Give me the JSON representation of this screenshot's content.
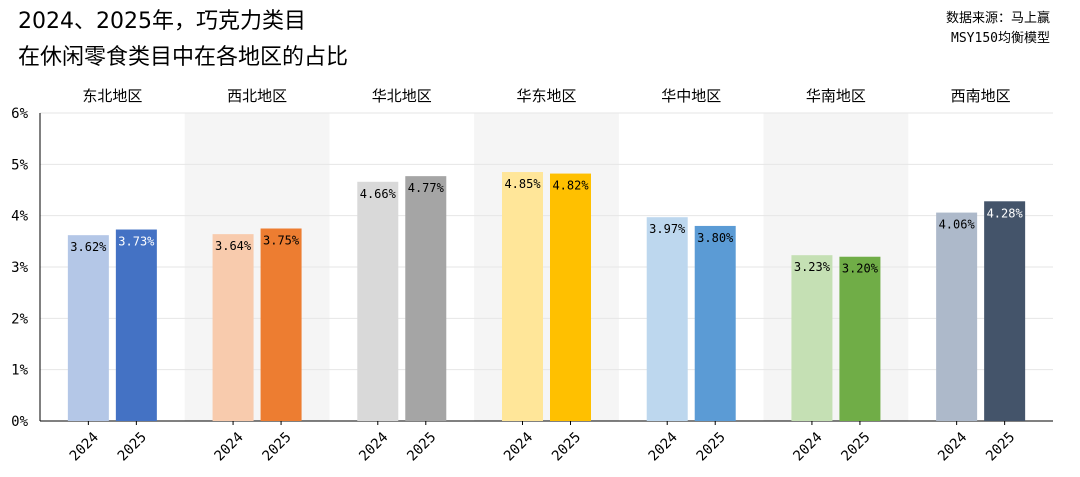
{
  "header": {
    "title_line1": "2024、2025年，巧克力类目",
    "title_line2": "在休闲零食类目中在各地区的占比",
    "source_line1": "数据来源：马上赢",
    "source_line2": "MSY150均衡模型"
  },
  "chart_data": {
    "type": "bar",
    "title": "2024、2025年，巧克力类目在休闲零食类目中在各地区的占比",
    "xlabel": "",
    "ylabel": "",
    "ylim": [
      0,
      6
    ],
    "yticks": [
      "0%",
      "1%",
      "2%",
      "3%",
      "4%",
      "5%",
      "6%"
    ],
    "grid": true,
    "groups": [
      {
        "name": "东北地区",
        "x": [
          "2024",
          "2025"
        ],
        "values": [
          3.62,
          3.73
        ],
        "labels": [
          "3.62%",
          "3.73%"
        ],
        "colors": [
          "#b4c7e7",
          "#4472c4"
        ],
        "shaded": false
      },
      {
        "name": "西北地区",
        "x": [
          "2024",
          "2025"
        ],
        "values": [
          3.64,
          3.75
        ],
        "labels": [
          "3.64%",
          "3.75%"
        ],
        "colors": [
          "#f8cbad",
          "#ed7d31"
        ],
        "shaded": true
      },
      {
        "name": "华北地区",
        "x": [
          "2024",
          "2025"
        ],
        "values": [
          4.66,
          4.77
        ],
        "labels": [
          "4.66%",
          "4.77%"
        ],
        "colors": [
          "#d9d9d9",
          "#a5a5a5"
        ],
        "shaded": false
      },
      {
        "name": "华东地区",
        "x": [
          "2024",
          "2025"
        ],
        "values": [
          4.85,
          4.82
        ],
        "labels": [
          "4.85%",
          "4.82%"
        ],
        "colors": [
          "#ffe699",
          "#ffc000"
        ],
        "shaded": true
      },
      {
        "name": "华中地区",
        "x": [
          "2024",
          "2025"
        ],
        "values": [
          3.97,
          3.8
        ],
        "labels": [
          "3.97%",
          "3.80%"
        ],
        "colors": [
          "#bdd7ee",
          "#5b9bd5"
        ],
        "shaded": false
      },
      {
        "name": "华南地区",
        "x": [
          "2024",
          "2025"
        ],
        "values": [
          3.23,
          3.2
        ],
        "labels": [
          "3.23%",
          "3.20%"
        ],
        "colors": [
          "#c5e0b4",
          "#70ad47"
        ],
        "shaded": true
      },
      {
        "name": "西南地区",
        "x": [
          "2024",
          "2025"
        ],
        "values": [
          4.06,
          4.28
        ],
        "labels": [
          "4.06%",
          "4.28%"
        ],
        "colors": [
          "#adb9ca",
          "#44546a"
        ],
        "shaded": false
      }
    ]
  }
}
